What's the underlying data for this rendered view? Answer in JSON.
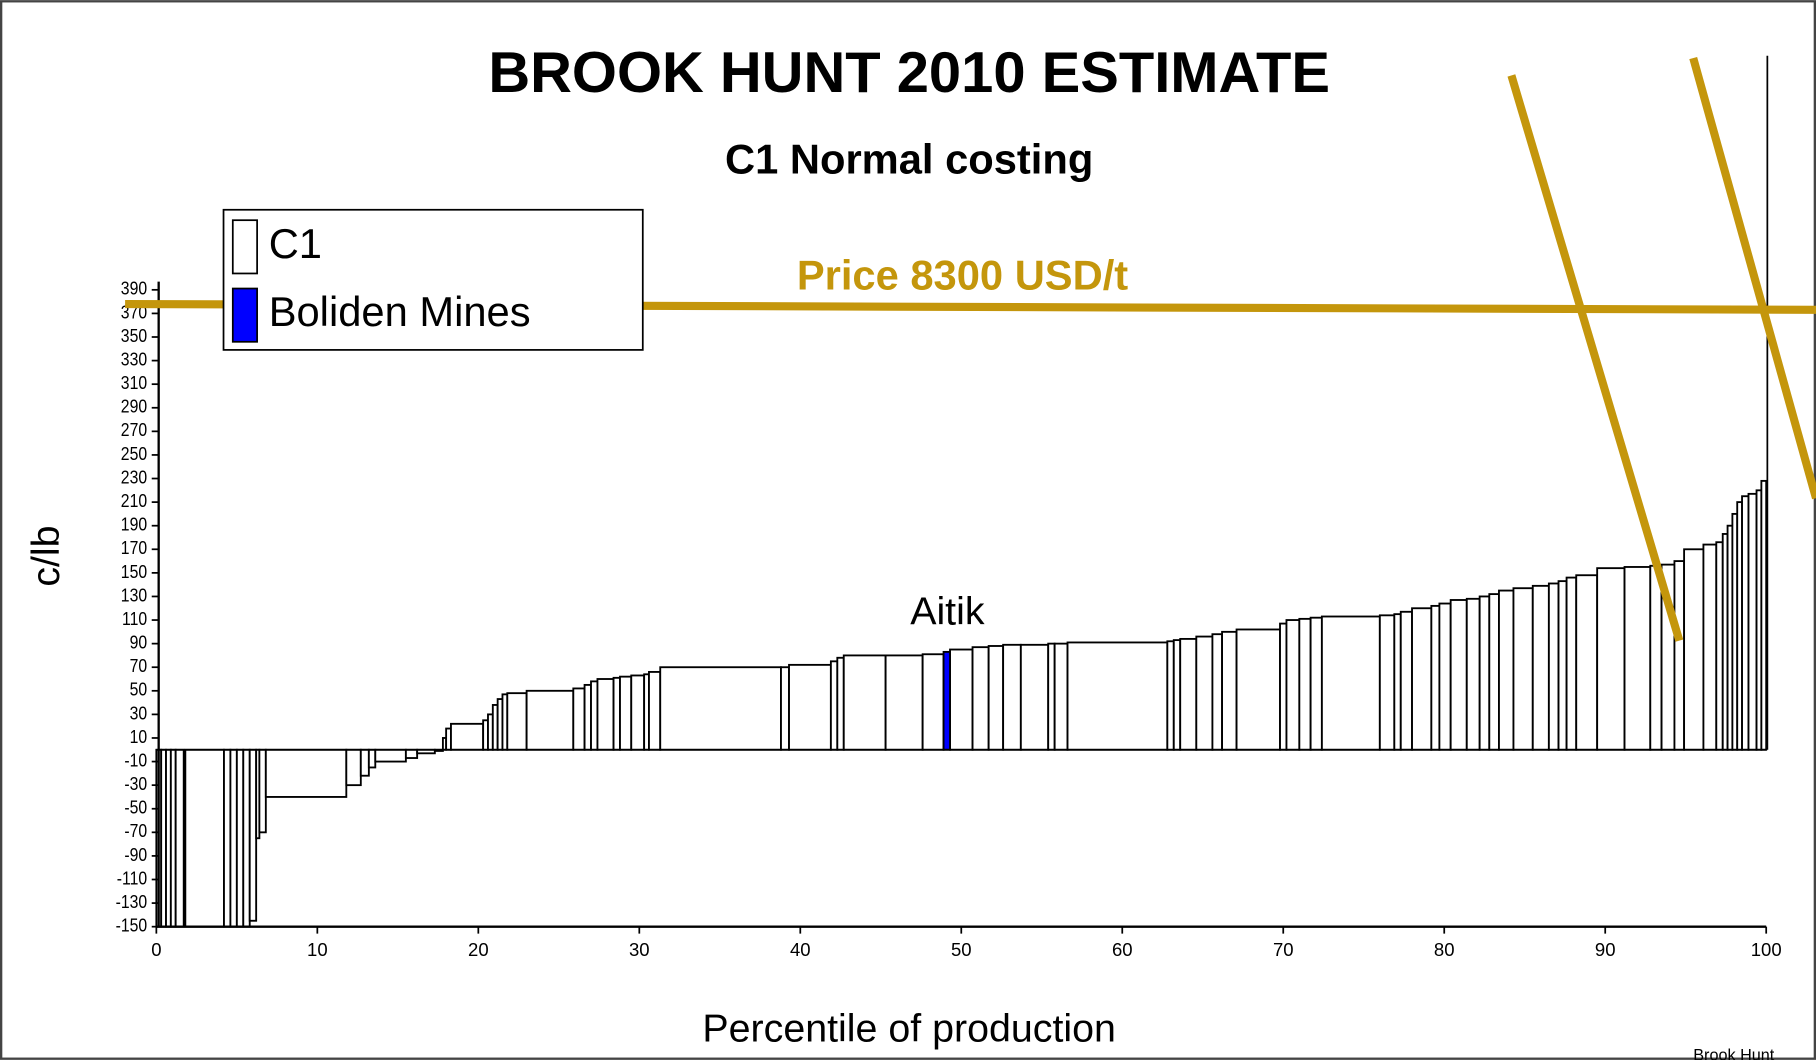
{
  "chart_data": {
    "type": "cost_curve",
    "title": "BROOK HUNT 2010 ESTIMATE",
    "subtitle": "C1 Normal costing",
    "xlabel": "Percentile of production",
    "ylabel": "c/lb",
    "annotation": "Aitik",
    "source": "Brook Hunt",
    "price_line": {
      "label": "Price 8300 USD/t",
      "value": 376,
      "color": "#c4960c"
    },
    "xlim": [
      0,
      100
    ],
    "xticks": [
      0,
      10,
      20,
      30,
      40,
      50,
      60,
      70,
      80,
      90,
      100
    ],
    "ylim": [
      -150,
      397
    ],
    "yticks": [
      390,
      370,
      350,
      330,
      310,
      290,
      270,
      250,
      230,
      210,
      190,
      170,
      150,
      130,
      110,
      90,
      70,
      50,
      30,
      10,
      -10,
      -30,
      -50,
      -70,
      -90,
      -110,
      -130,
      -150
    ],
    "grid": false,
    "legend": "upper left",
    "series": [
      {
        "name": "C1",
        "color": "#ffffff",
        "x0": [
          0,
          0.3,
          0.6,
          0.9,
          1.2,
          1.8,
          4.2,
          4.6,
          5,
          5.4,
          5.8,
          6.2,
          6.4,
          6.8,
          11.8,
          12.7,
          13.2,
          13.6,
          15.5,
          16.2,
          17.3,
          17.8,
          18.0,
          18.3,
          20.3,
          20.6,
          20.9,
          21.2,
          21.5,
          21.8,
          23.0,
          25.9,
          26.6,
          27,
          27.4,
          28.4,
          28.8,
          29.5,
          30.3,
          30.6,
          31.3,
          38.8,
          39.3,
          41.9,
          42.3,
          42.7,
          45.3,
          47.6,
          49.3,
          50.7,
          51.7,
          52.6,
          53.7,
          55.4,
          55.8,
          56.6,
          62.8,
          63.2,
          63.6,
          64.6,
          65.6,
          66.2,
          67.1,
          69.8,
          70.2,
          71,
          71.7,
          72.4,
          76,
          76.9,
          77.3,
          78,
          79.2,
          79.7,
          80.4,
          81.4,
          82.2,
          82.8,
          83.4,
          84.3,
          85.5,
          86.5,
          87.1,
          87.6,
          88.2,
          89.5,
          91.2,
          92.8,
          93.5,
          94.3,
          94.9,
          96.1,
          96.9,
          97.3,
          97.6,
          97.9,
          98.2,
          98.5,
          98.9,
          99.4,
          99.7
        ],
        "x1": [
          0.3,
          0.6,
          0.9,
          1.2,
          1.7,
          4.2,
          4.6,
          5,
          5.4,
          5.8,
          6.2,
          6.4,
          6.8,
          11.8,
          12.7,
          13.2,
          13.6,
          15.5,
          16.2,
          17.3,
          17.8,
          18.0,
          18.3,
          20.3,
          20.6,
          20.9,
          21.2,
          21.5,
          21.8,
          23.0,
          25.9,
          26.6,
          27,
          27.4,
          28.4,
          28.8,
          29.5,
          30.3,
          30.6,
          31.3,
          38.8,
          39.3,
          41.9,
          42.3,
          42.7,
          45.3,
          47.6,
          48.9,
          50.7,
          51.7,
          52.6,
          53.7,
          55.4,
          55.8,
          56.6,
          62.8,
          63.2,
          63.6,
          64.6,
          65.6,
          66.2,
          67.1,
          69.8,
          70.2,
          71,
          71.7,
          72.4,
          76,
          76.9,
          77.3,
          78,
          79.2,
          79.7,
          80.4,
          81.4,
          82.2,
          82.8,
          83.4,
          84.3,
          85.5,
          86.5,
          87.1,
          87.6,
          88.2,
          89.5,
          91.2,
          92.8,
          93.5,
          94.3,
          94.9,
          96.1,
          96.9,
          97.3,
          97.6,
          97.9,
          98.2,
          98.5,
          98.9,
          99.4,
          99.7,
          100
        ],
        "values": [
          -150,
          -150,
          -150,
          -150,
          -150,
          -150,
          -150,
          -150,
          -150,
          -150,
          -145,
          -75,
          -70,
          -40,
          -30,
          -22,
          -15,
          -10,
          -7,
          -3,
          -1,
          10,
          18,
          22,
          25,
          30,
          38,
          43,
          47,
          48,
          50,
          52,
          55,
          58,
          60,
          61,
          62,
          63,
          64,
          66,
          70,
          70,
          72,
          75,
          78,
          80,
          80,
          81,
          85,
          87,
          88,
          89,
          89,
          90,
          90,
          91,
          92,
          93,
          94,
          96,
          98,
          100,
          102,
          107,
          110,
          111,
          112,
          113,
          114,
          115,
          117,
          120,
          122,
          124,
          127,
          128,
          130,
          132,
          135,
          137,
          139,
          141,
          143,
          146,
          148,
          154,
          155,
          156,
          157,
          160,
          170,
          174,
          176,
          183,
          190,
          200,
          210,
          215,
          217,
          220,
          228
        ]
      },
      {
        "name": "Boliden Mines",
        "color": "#0000ff",
        "x0": [
          48.9
        ],
        "x1": [
          49.3
        ],
        "values": [
          83
        ]
      }
    ]
  }
}
